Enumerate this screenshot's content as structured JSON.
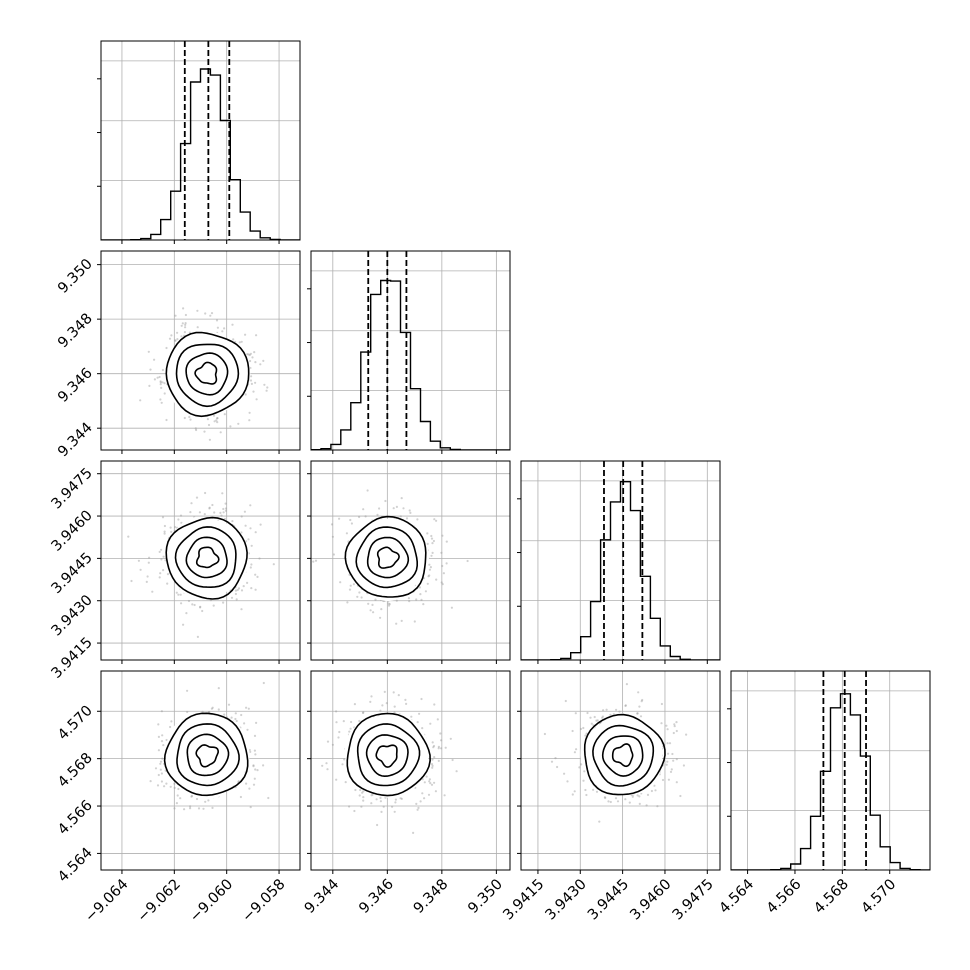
{
  "chart_data": {
    "type": "corner",
    "parameters": [
      {
        "range": [
          -9.0648,
          -9.0572
        ],
        "ticks": [
          -9.064,
          -9.062,
          -9.06,
          -9.058
        ],
        "tick_labels": [
          "−9.064",
          "−9.062",
          "−9.060",
          "−9.058"
        ],
        "mean": -9.06075,
        "std": 0.00075,
        "quantiles": [
          -9.0616,
          -9.0607,
          -9.0599
        ]
      },
      {
        "range": [
          9.3432,
          9.3505
        ],
        "ticks": [
          9.344,
          9.346,
          9.348,
          9.35
        ],
        "tick_labels": [
          "9.344",
          "9.346",
          "9.348",
          "9.350"
        ],
        "mean": 9.346,
        "std": 0.00072,
        "quantiles": [
          9.3453,
          9.346,
          9.3467
        ]
      },
      {
        "range": [
          3.9409,
          3.94795
        ],
        "ticks": [
          3.9415,
          3.943,
          3.9445,
          3.946,
          3.9475
        ],
        "tick_labels": [
          "3.9415",
          "3.9430",
          "3.9445",
          "3.9460",
          "3.9475"
        ],
        "mean": 3.94452,
        "std": 0.00066,
        "quantiles": [
          3.94384,
          3.94452,
          3.9452
        ]
      },
      {
        "range": [
          4.5633,
          4.5717
        ],
        "ticks": [
          4.564,
          4.566,
          4.568,
          4.57
        ],
        "tick_labels": [
          "4.564",
          "4.566",
          "4.568",
          "4.570"
        ],
        "mean": 4.56815,
        "std": 0.00082,
        "quantiles": [
          4.5672,
          4.5681,
          4.569
        ]
      }
    ],
    "grid": true,
    "quantile_levels": [
      0.16,
      0.5,
      0.84
    ],
    "histogram_bins": 20,
    "contour_sigma_levels": [
      0.5,
      1.0,
      1.5,
      2.0
    ]
  }
}
